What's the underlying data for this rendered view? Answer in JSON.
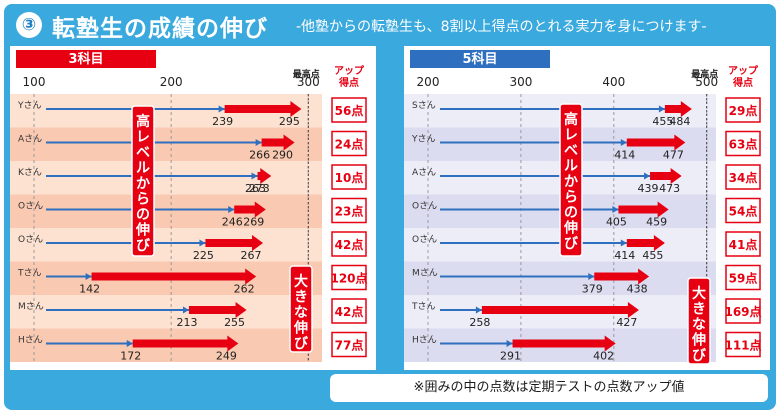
{
  "header": {
    "number": "③",
    "title": "転塾生の成績の伸び",
    "subtitle": "-他塾からの転塾生も、8割以上得点のとれる実力を身につけます-"
  },
  "note": "※囲みの中の点数は定期テストの点数アップ値",
  "colors": {
    "frame": "#3aa9de",
    "label_red": "#e60012",
    "label_blue": "#2f6fbf",
    "arrow_blue": "#2f6fbf",
    "arrow_red": "#e60012",
    "row_light_red": "#fde2d2",
    "row_dark_red": "#f9c9b1",
    "row_light_blue": "#ededf8",
    "row_dark_blue": "#dcdcf0",
    "grid": "#9a9a9a"
  },
  "chart_data": [
    {
      "type": "bar",
      "panel_label": "3科目",
      "x_ticks": [
        "100",
        "200",
        "300"
      ],
      "xlim": [
        100,
        310
      ],
      "max_label": "最高点",
      "max_value": 300,
      "up_header": "アップ\n得点",
      "categories": [
        "Yさん",
        "Aさん",
        "Kさん",
        "Oさん",
        "Oさん",
        "Tさん",
        "Mさん",
        "Hさん"
      ],
      "series": [
        {
          "name": "before",
          "values": [
            239,
            266,
            263,
            246,
            225,
            142,
            213,
            172
          ]
        },
        {
          "name": "after",
          "values": [
            295,
            290,
            273,
            269,
            267,
            262,
            255,
            249
          ]
        }
      ],
      "up_labels": [
        "56点",
        "24点",
        "10点",
        "23点",
        "42点",
        "120点",
        "42点",
        "77点"
      ],
      "groups": [
        {
          "label": "高レベルからの伸び",
          "start": 0,
          "count": 5
        },
        {
          "label": "大きな伸び",
          "start": 5,
          "count": 3
        }
      ]
    },
    {
      "type": "bar",
      "panel_label": "5科目",
      "x_ticks": [
        "200",
        "300",
        "400",
        "500"
      ],
      "xlim": [
        200,
        510
      ],
      "max_label": "最高点",
      "max_value": 500,
      "up_header": "アップ\n得点",
      "categories": [
        "Sさん",
        "Yさん",
        "Aさん",
        "Oさん",
        "Oさん",
        "Mさん",
        "Tさん",
        "Hさん"
      ],
      "series": [
        {
          "name": "before",
          "values": [
            455,
            414,
            439,
            405,
            414,
            379,
            258,
            291
          ]
        },
        {
          "name": "after",
          "values": [
            484,
            477,
            473,
            459,
            455,
            438,
            427,
            402
          ]
        }
      ],
      "up_labels": [
        "29点",
        "63点",
        "34点",
        "54点",
        "41点",
        "59点",
        "169点",
        "111点"
      ],
      "groups": [
        {
          "label": "高レベルからの伸び",
          "start": 0,
          "count": 5
        },
        {
          "label": "大きな伸び",
          "start": 5,
          "count": 3
        }
      ]
    }
  ]
}
